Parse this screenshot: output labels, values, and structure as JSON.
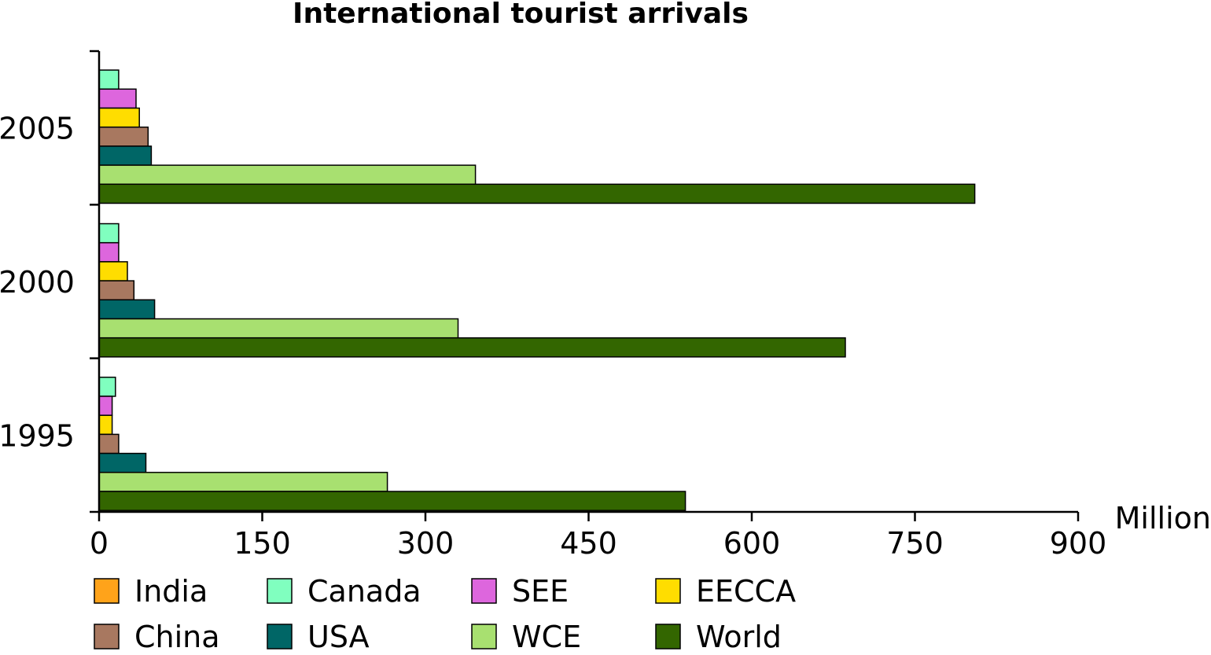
{
  "chart_data": {
    "type": "bar",
    "orientation": "horizontal",
    "title": "International tourist arrivals",
    "xlabel": "Million",
    "ylabel": "",
    "xlim": [
      0,
      900
    ],
    "x_ticks": [
      "0",
      "150",
      "300",
      "450",
      "600",
      "750",
      "900"
    ],
    "categories": [
      "2005",
      "2000",
      "1995"
    ],
    "grid": false,
    "legend_position": "bottom",
    "series": [
      {
        "name": "India",
        "color": "#ffa31a",
        "values": [
          0,
          0,
          0
        ]
      },
      {
        "name": "Canada",
        "color": "#80ffbf",
        "values": [
          18,
          18,
          15
        ]
      },
      {
        "name": "SEE",
        "color": "#dd66dd",
        "values": [
          34,
          18,
          12
        ]
      },
      {
        "name": "EECCA",
        "color": "#ffdd00",
        "values": [
          37,
          26,
          12
        ]
      },
      {
        "name": "China",
        "color": "#a87860",
        "values": [
          45,
          32,
          18
        ]
      },
      {
        "name": "USA",
        "color": "#006666",
        "values": [
          48,
          51,
          43
        ]
      },
      {
        "name": "WCE",
        "color": "#a8e070",
        "values": [
          346,
          330,
          265
        ]
      },
      {
        "name": "World",
        "color": "#336600",
        "values": [
          805,
          686,
          539
        ]
      }
    ]
  }
}
